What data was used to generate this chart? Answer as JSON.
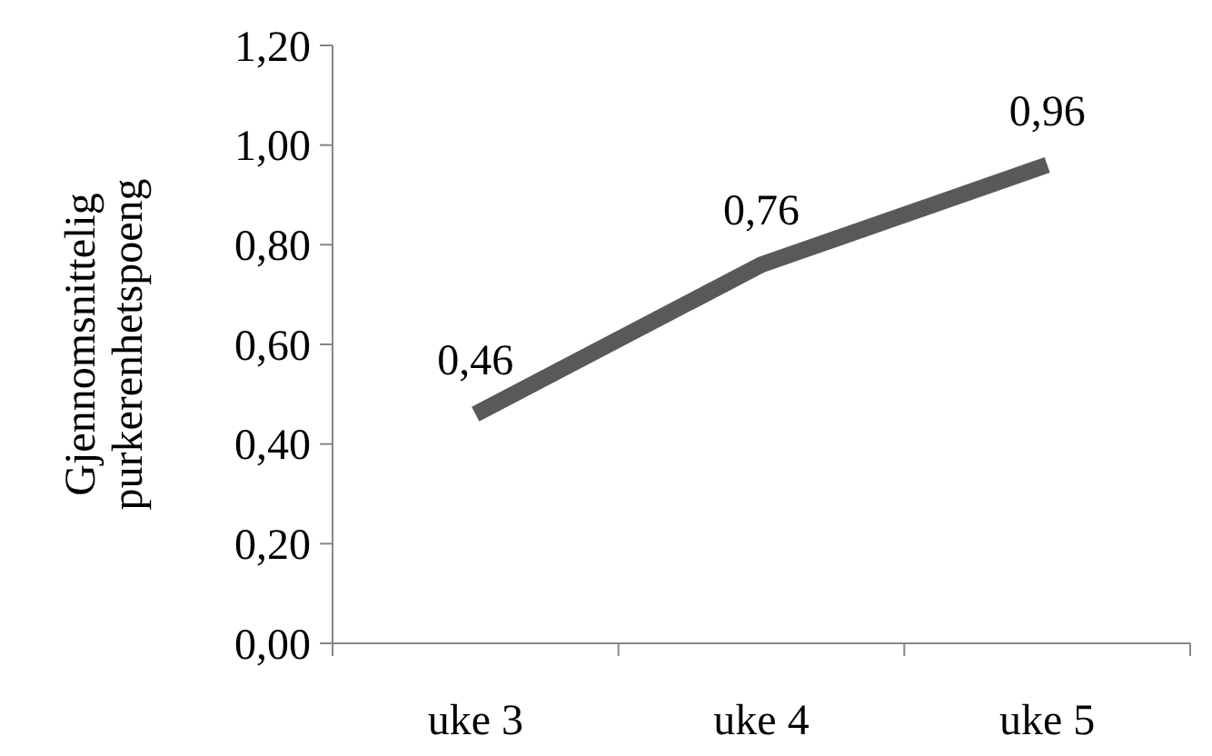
{
  "chart_data": {
    "type": "line",
    "ylabel": "Gjennomsnittelig purkerenhetspoeng",
    "categories": [
      "uke 3",
      "uke 4",
      "uke 5"
    ],
    "series": [
      {
        "color": "#595959",
        "values": [
          0.46,
          0.76,
          0.96
        ],
        "value_labels": [
          "0,46",
          "0,76",
          "0,96"
        ]
      }
    ],
    "ylim": [
      0,
      1.2
    ],
    "yticks": [
      {
        "value": 0,
        "label": "0,00"
      },
      {
        "value": 0.2,
        "label": "0,20"
      },
      {
        "value": 0.4,
        "label": "0,40"
      },
      {
        "value": 0.6,
        "label": "0,60"
      },
      {
        "value": 0.8,
        "label": "0,80"
      },
      {
        "value": 1,
        "label": "1,00"
      },
      {
        "value": 1.2,
        "label": "1,20"
      }
    ],
    "grid": false,
    "marker": "none",
    "line_style": "solid"
  }
}
